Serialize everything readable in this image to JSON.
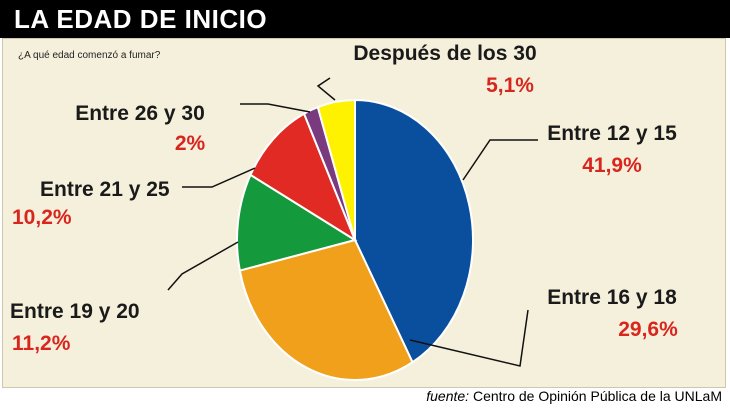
{
  "header": {
    "title": "LA EDAD DE INICIO"
  },
  "question": "¿A qué edad comenzó a fumar?",
  "footer": {
    "source_label": "fuente:",
    "source_text": "Centro de Opinión Pública de la UNLaM"
  },
  "colors": {
    "label": "#1a1a1a",
    "value": "#d8251d",
    "panel": "#f5f0dc"
  },
  "chart_data": {
    "type": "pie",
    "slices": [
      {
        "name": "Entre 12 y 15",
        "value": 41.9,
        "display": "41,9%",
        "color": "#0a4f9e"
      },
      {
        "name": "Entre 16 y 18",
        "value": 29.6,
        "display": "29,6%",
        "color": "#f0a01a"
      },
      {
        "name": "Entre 19 y 20",
        "value": 11.2,
        "display": "11,2%",
        "color": "#149a3c"
      },
      {
        "name": "Entre 21 y 25",
        "value": 10.2,
        "display": "10,2%",
        "color": "#e02a23"
      },
      {
        "name": "Entre 26 y 30",
        "value": 2,
        "display": "2%",
        "color": "#7a3a7e"
      },
      {
        "name": "Después de los 30",
        "value": 5.1,
        "display": "5,1%",
        "color": "#fff200"
      }
    ]
  }
}
